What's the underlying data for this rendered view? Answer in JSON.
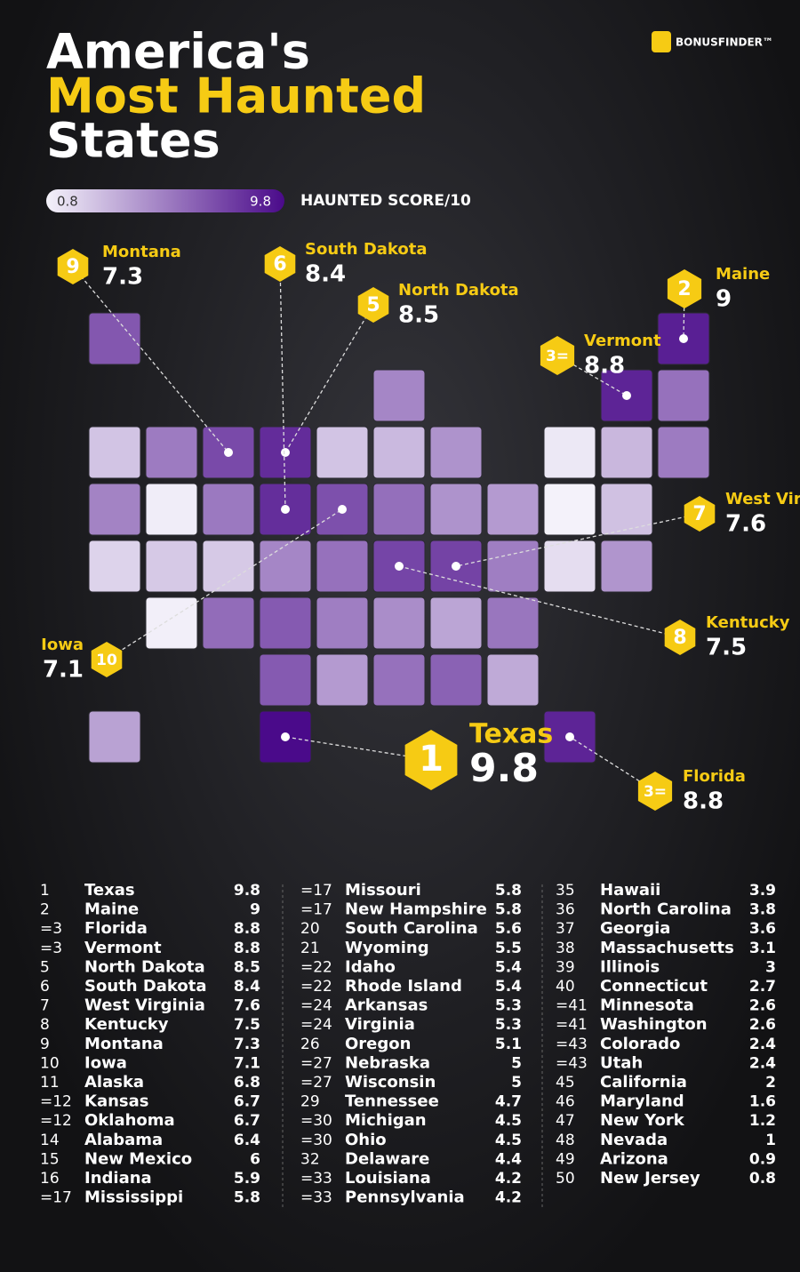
{
  "header": {
    "title_line1": "America's",
    "title_line2": "Most Haunted",
    "title_line3": "States",
    "brand": "BONUSFINDER™"
  },
  "legend": {
    "min": 0.8,
    "max": 9.8,
    "label": "HAUNTED SCORE/10"
  },
  "callouts": [
    {
      "rank": "1",
      "state": "Texas",
      "score": 9.8
    },
    {
      "rank": "2",
      "state": "Maine",
      "score": 9
    },
    {
      "rank": "3=",
      "state": "Florida",
      "score": 8.8
    },
    {
      "rank": "3=",
      "state": "Vermont",
      "score": 8.8
    },
    {
      "rank": "5",
      "state": "North Dakota",
      "score": 8.5
    },
    {
      "rank": "6",
      "state": "South Dakota",
      "score": 8.4
    },
    {
      "rank": "7",
      "state": "West Virginia",
      "score": 7.6
    },
    {
      "rank": "8",
      "state": "Kentucky",
      "score": 7.5
    },
    {
      "rank": "9",
      "state": "Montana",
      "score": 7.3
    },
    {
      "rank": "10",
      "state": "Iowa",
      "score": 7.1
    }
  ],
  "table": {
    "rows": [
      [
        "1",
        "Texas",
        9.8
      ],
      [
        "2",
        "Maine",
        9
      ],
      [
        "=3",
        "Florida",
        8.8
      ],
      [
        "=3",
        "Vermont",
        8.8
      ],
      [
        "5",
        "North Dakota",
        8.5
      ],
      [
        "6",
        "South Dakota",
        8.4
      ],
      [
        "7",
        "West Virginia",
        7.6
      ],
      [
        "8",
        "Kentucky",
        7.5
      ],
      [
        "9",
        "Montana",
        7.3
      ],
      [
        "10",
        "Iowa",
        7.1
      ],
      [
        "11",
        "Alaska",
        6.8
      ],
      [
        "=12",
        "Kansas",
        6.7
      ],
      [
        "=12",
        "Oklahoma",
        6.7
      ],
      [
        "14",
        "Alabama",
        6.4
      ],
      [
        "15",
        "New Mexico",
        6
      ],
      [
        "16",
        "Indiana",
        5.9
      ],
      [
        "=17",
        "Mississippi",
        5.8
      ],
      [
        "=17",
        "Missouri",
        5.8
      ],
      [
        "=17",
        "New Hampshire",
        5.8
      ],
      [
        "20",
        "South Carolina",
        5.6
      ],
      [
        "21",
        "Wyoming",
        5.5
      ],
      [
        "=22",
        "Idaho",
        5.4
      ],
      [
        "=22",
        "Rhode Island",
        5.4
      ],
      [
        "=24",
        "Arkansas",
        5.3
      ],
      [
        "=24",
        "Virginia",
        5.3
      ],
      [
        "26",
        "Oregon",
        5.1
      ],
      [
        "=27",
        "Nebraska",
        5
      ],
      [
        "=27",
        "Wisconsin",
        5
      ],
      [
        "29",
        "Tennessee",
        4.7
      ],
      [
        "=30",
        "Michigan",
        4.5
      ],
      [
        "=30",
        "Ohio",
        4.5
      ],
      [
        "32",
        "Delaware",
        4.4
      ],
      [
        "=33",
        "Louisiana",
        4.2
      ],
      [
        "=33",
        "Pennsylvania",
        4.2
      ],
      [
        "35",
        "Hawaii",
        3.9
      ],
      [
        "36",
        "North Carolina",
        3.8
      ],
      [
        "37",
        "Georgia",
        3.6
      ],
      [
        "38",
        "Massachusetts",
        3.1
      ],
      [
        "39",
        "Illinois",
        3
      ],
      [
        "40",
        "Connecticut",
        2.7
      ],
      [
        "=41",
        "Minnesota",
        2.6
      ],
      [
        "=41",
        "Washington",
        2.6
      ],
      [
        "=43",
        "Colorado",
        2.4
      ],
      [
        "=43",
        "Utah",
        2.4
      ],
      [
        "45",
        "California",
        2
      ],
      [
        "46",
        "Maryland",
        1.6
      ],
      [
        "47",
        "New York",
        1.2
      ],
      [
        "48",
        "Nevada",
        1
      ],
      [
        "49",
        "Arizona",
        0.9
      ],
      [
        "50",
        "New Jersey",
        0.8
      ]
    ]
  }
}
